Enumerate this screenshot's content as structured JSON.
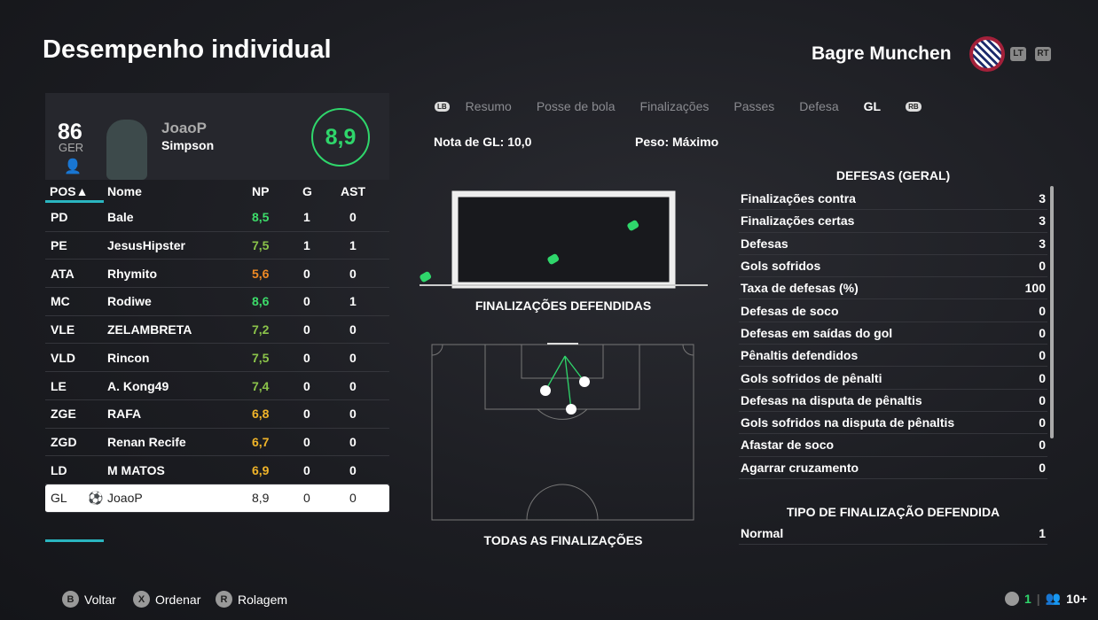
{
  "header": {
    "title": "Desempenho individual",
    "team": "Bagre Munchen",
    "lt": "LT",
    "rt": "RT"
  },
  "player": {
    "overall": "86",
    "position": "GER",
    "first_name": "JoaoP",
    "last_name": "Simpson",
    "rating": "8,9"
  },
  "table": {
    "columns": [
      "POS▲",
      "Nome",
      "NP",
      "G",
      "AST"
    ],
    "rows": [
      {
        "pos": "PD",
        "name": "Bale",
        "np": "8,5",
        "g": "1",
        "ast": "0",
        "color": "#3ddc6a"
      },
      {
        "pos": "PE",
        "name": "JesusHipster",
        "np": "7,5",
        "g": "1",
        "ast": "1",
        "color": "#8bc34a"
      },
      {
        "pos": "ATA",
        "name": "Rhymito",
        "np": "5,6",
        "g": "0",
        "ast": "0",
        "color": "#f08a24"
      },
      {
        "pos": "MC",
        "name": "Rodiwe",
        "np": "8,6",
        "g": "0",
        "ast": "1",
        "color": "#3ddc6a"
      },
      {
        "pos": "VLE",
        "name": "ZELAMBRETA",
        "np": "7,2",
        "g": "0",
        "ast": "0",
        "color": "#8bc34a"
      },
      {
        "pos": "VLD",
        "name": "Rincon",
        "np": "7,5",
        "g": "0",
        "ast": "0",
        "color": "#8bc34a"
      },
      {
        "pos": "LE",
        "name": "A. Kong49",
        "np": "7,4",
        "g": "0",
        "ast": "0",
        "color": "#8bc34a"
      },
      {
        "pos": "ZGE",
        "name": "RAFA",
        "np": "6,8",
        "g": "0",
        "ast": "0",
        "color": "#f0b429"
      },
      {
        "pos": "ZGD",
        "name": "Renan Recife",
        "np": "6,7",
        "g": "0",
        "ast": "0",
        "color": "#f0b429"
      },
      {
        "pos": "LD",
        "name": "M MATOS",
        "np": "6,9",
        "g": "0",
        "ast": "0",
        "color": "#f0b429"
      },
      {
        "pos": "GL",
        "name": "JoaoP",
        "np": "8,9",
        "g": "0",
        "ast": "0",
        "color": "#222222",
        "selected": true
      }
    ]
  },
  "tabs": {
    "lb": "LB",
    "rb": "RB",
    "items": [
      "Resumo",
      "Posse de bola",
      "Finalizações",
      "Passes",
      "Defesa",
      "GL"
    ],
    "active": "GL"
  },
  "summary": {
    "gk_rating": "Nota de GL: 10,0",
    "weight": "Peso: Máximo"
  },
  "diagrams": {
    "saved_caption": "FINALIZAÇÕES DEFENDIDAS",
    "all_caption": "TODAS AS FINALIZAÇÕES"
  },
  "stats": {
    "title": "DEFESAS (GERAL)",
    "rows": [
      {
        "label": "Finalizações contra",
        "value": "3"
      },
      {
        "label": "Finalizações certas",
        "value": "3"
      },
      {
        "label": "Defesas",
        "value": "3"
      },
      {
        "label": "Gols sofridos",
        "value": "0"
      },
      {
        "label": "Taxa de defesas (%)",
        "value": "100"
      },
      {
        "label": "Defesas de soco",
        "value": "0"
      },
      {
        "label": "Defesas em saídas do gol",
        "value": "0"
      },
      {
        "label": "Pênaltis defendidos",
        "value": "0"
      },
      {
        "label": "Gols sofridos de pênalti",
        "value": "0"
      },
      {
        "label": "Defesas na disputa de pênaltis",
        "value": "0"
      },
      {
        "label": "Gols sofridos na disputa de pênaltis",
        "value": "0"
      },
      {
        "label": "Afastar de soco",
        "value": "0"
      },
      {
        "label": "Agarrar cruzamento",
        "value": "0"
      }
    ],
    "type_title": "TIPO DE FINALIZAÇÃO DEFENDIDA",
    "type_rows": [
      {
        "label": "Normal",
        "value": "1"
      }
    ]
  },
  "footer": {
    "back": "Voltar",
    "back_btn": "B",
    "sort": "Ordenar",
    "sort_btn": "X",
    "scroll": "Rolagem",
    "scroll_btn": "R",
    "count": "1",
    "players": "10+"
  },
  "colors": {
    "accent": "#2fd66b",
    "tab_underline": "#2ab5c0"
  }
}
